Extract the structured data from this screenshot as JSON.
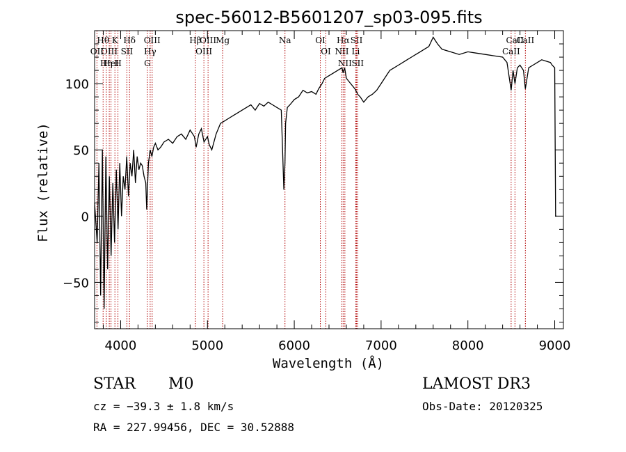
{
  "chart_data": {
    "type": "line",
    "title": "spec-56012-B5601207_sp03-095.fits",
    "xlabel": "Wavelength (Å)",
    "ylabel": "Flux (relative)",
    "xlim": [
      3700,
      9100
    ],
    "ylim": [
      -85,
      140
    ],
    "xticks": [
      4000,
      5000,
      6000,
      7000,
      8000,
      9000
    ],
    "yticks": [
      -50,
      0,
      50,
      100
    ],
    "series": [
      {
        "name": "flux",
        "color": "#000000",
        "x": [
          3700,
          3730,
          3750,
          3770,
          3790,
          3810,
          3830,
          3850,
          3870,
          3890,
          3910,
          3930,
          3950,
          3970,
          3990,
          4010,
          4030,
          4050,
          4070,
          4090,
          4110,
          4130,
          4150,
          4170,
          4190,
          4210,
          4230,
          4250,
          4270,
          4290,
          4300,
          4320,
          4340,
          4360,
          4380,
          4400,
          4430,
          4460,
          4500,
          4550,
          4600,
          4650,
          4700,
          4750,
          4800,
          4850,
          4870,
          4900,
          4930,
          4960,
          5000,
          5020,
          5050,
          5100,
          5150,
          5200,
          5250,
          5300,
          5350,
          5400,
          5450,
          5500,
          5550,
          5600,
          5650,
          5700,
          5750,
          5800,
          5850,
          5880,
          5893,
          5900,
          5920,
          5950,
          6000,
          6050,
          6100,
          6150,
          6200,
          6250,
          6280,
          6300,
          6320,
          6350,
          6400,
          6450,
          6500,
          6550,
          6563,
          6580,
          6600,
          6650,
          6700,
          6730,
          6760,
          6800,
          6850,
          6900,
          6950,
          7000,
          7050,
          7100,
          7150,
          7200,
          7250,
          7300,
          7350,
          7400,
          7450,
          7500,
          7550,
          7600,
          7650,
          7700,
          7800,
          7900,
          8000,
          8100,
          8200,
          8300,
          8400,
          8450,
          8498,
          8520,
          8542,
          8570,
          8600,
          8640,
          8662,
          8700,
          8750,
          8800,
          8850,
          8900,
          8950,
          8970,
          9000,
          9010,
          9020
        ],
        "values": [
          10,
          -20,
          40,
          -60,
          50,
          -70,
          45,
          -40,
          30,
          -30,
          25,
          -20,
          35,
          -10,
          40,
          0,
          30,
          20,
          45,
          15,
          40,
          30,
          50,
          25,
          45,
          35,
          40,
          38,
          30,
          25,
          5,
          40,
          50,
          45,
          52,
          55,
          50,
          52,
          56,
          58,
          55,
          60,
          62,
          58,
          65,
          60,
          52,
          62,
          66,
          56,
          60,
          54,
          50,
          62,
          70,
          72,
          74,
          76,
          78,
          80,
          82,
          84,
          80,
          85,
          83,
          86,
          84,
          82,
          80,
          20,
          40,
          70,
          82,
          84,
          88,
          90,
          95,
          93,
          94,
          92,
          96,
          98,
          100,
          104,
          106,
          108,
          110,
          112,
          108,
          112,
          104,
          100,
          96,
          92,
          90,
          86,
          90,
          92,
          95,
          100,
          105,
          110,
          112,
          114,
          116,
          118,
          120,
          122,
          124,
          126,
          128,
          135,
          130,
          126,
          124,
          122,
          124,
          123,
          122,
          121,
          120,
          116,
          95,
          110,
          100,
          112,
          114,
          110,
          96,
          112,
          114,
          116,
          118,
          117,
          116,
          114,
          112,
          0,
          0
        ]
      }
    ],
    "spectral_lines": [
      {
        "label": "Hθ",
        "wavelength": 3798
      },
      {
        "label": "OII",
        "wavelength": 3727
      },
      {
        "label": "OIII",
        "wavelength": 3869
      },
      {
        "label": "K",
        "wavelength": 3934
      },
      {
        "label": "HeI",
        "wavelength": 3889
      },
      {
        "label": "Hη",
        "wavelength": 3835
      },
      {
        "label": "H",
        "wavelength": 3969
      },
      {
        "label": "Hδ",
        "wavelength": 4102
      },
      {
        "label": "SII",
        "wavelength": 4072
      },
      {
        "label": "OIII",
        "wavelength": 4363
      },
      {
        "label": "Hγ",
        "wavelength": 4340
      },
      {
        "label": "G",
        "wavelength": 4308
      },
      {
        "label": "OIII",
        "wavelength": 5007
      },
      {
        "label": "OIII",
        "wavelength": 4959
      },
      {
        "label": "Hβ",
        "wavelength": 4861
      },
      {
        "label": "Mg",
        "wavelength": 5175
      },
      {
        "label": "Na",
        "wavelength": 5893
      },
      {
        "label": "OI",
        "wavelength": 6300
      },
      {
        "label": "OI",
        "wavelength": 6364
      },
      {
        "label": "Hα",
        "wavelength": 6563
      },
      {
        "label": "SII",
        "wavelength": 6717
      },
      {
        "label": "NII",
        "wavelength": 6548
      },
      {
        "label": "Li",
        "wavelength": 6708
      },
      {
        "label": "NII",
        "wavelength": 6583
      },
      {
        "label": "SII",
        "wavelength": 6731
      },
      {
        "label": "CaII",
        "wavelength": 8542
      },
      {
        "label": "CaII",
        "wavelength": 8498
      },
      {
        "label": "CaII",
        "wavelength": 8662
      }
    ],
    "line_color": "#b00000"
  },
  "info": {
    "object_class": "STAR",
    "subclass": "M0",
    "survey": "LAMOST DR3",
    "cz": "cz = −39.3 ± 1.8 km/s",
    "obs_date": "Obs-Date: 20120325",
    "coords": "RA = 227.99456, DEC =  30.52888"
  }
}
